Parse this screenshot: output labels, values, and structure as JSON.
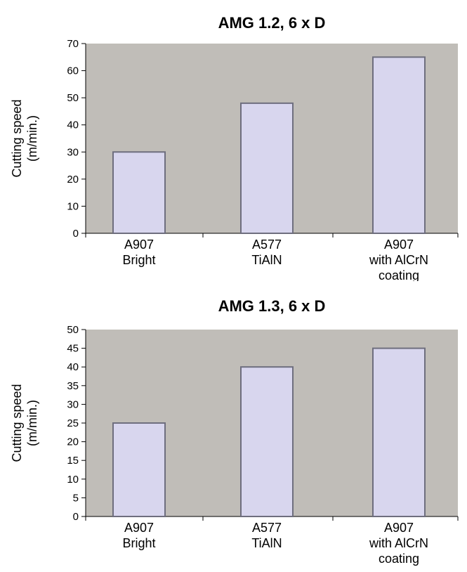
{
  "colors": {
    "plot_bg": "#c0bdb8",
    "bar_fill": "#d8d6ee",
    "bar_stroke": "#6e6e7e",
    "axis": "#000000"
  },
  "chart_data": [
    {
      "type": "bar",
      "title": "AMG 1.2, 6 x D",
      "ylabel": [
        "Cutting speed",
        "(m/min.)"
      ],
      "xlabel": "",
      "ylim": [
        0,
        70
      ],
      "yticks": [
        0,
        10,
        20,
        30,
        40,
        50,
        60,
        70
      ],
      "grid": false,
      "categories": [
        [
          "A907",
          "Bright"
        ],
        [
          "A577",
          "TiAlN"
        ],
        [
          "A907",
          "with AlCrN",
          "coating"
        ]
      ],
      "values": [
        30,
        48,
        65
      ]
    },
    {
      "type": "bar",
      "title": "AMG 1.3, 6 x D",
      "ylabel": [
        "Cutting speed",
        "(m/min.)"
      ],
      "xlabel": "",
      "ylim": [
        0,
        50
      ],
      "yticks": [
        0,
        5,
        10,
        15,
        20,
        25,
        30,
        35,
        40,
        45,
        50
      ],
      "grid": false,
      "categories": [
        [
          "A907",
          "Bright"
        ],
        [
          "A577",
          "TiAlN"
        ],
        [
          "A907",
          "with AlCrN",
          "coating"
        ]
      ],
      "values": [
        25,
        40,
        45
      ]
    }
  ]
}
